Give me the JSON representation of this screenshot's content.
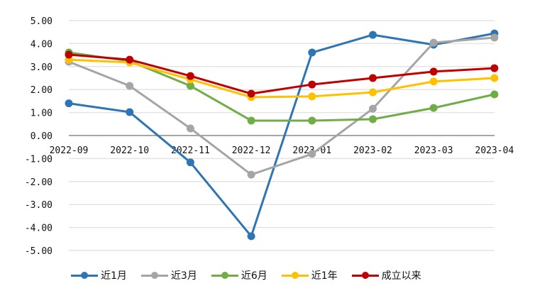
{
  "chart_data": {
    "type": "line",
    "title": "",
    "xlabel": "",
    "ylabel": "",
    "categories": [
      "2022-09",
      "2022-10",
      "2022-11",
      "2022-12",
      "2023-01",
      "2023-02",
      "2023-03",
      "2023-04"
    ],
    "yticks": [
      "5.00",
      "4.00",
      "3.00",
      "2.00",
      "1.00",
      "0.00",
      "-1.00",
      "-2.00",
      "-3.00",
      "-4.00",
      "-5.00"
    ],
    "ylim": [
      -5,
      5
    ],
    "grid": true,
    "legend_position": "bottom",
    "series": [
      {
        "name": "近1月",
        "color": "#2e75b6",
        "values": [
          1.4,
          1.02,
          -1.17,
          -4.38,
          3.61,
          4.38,
          3.95,
          4.44
        ]
      },
      {
        "name": "近3月",
        "color": "#a5a5a5",
        "values": [
          3.21,
          2.16,
          0.31,
          -1.7,
          -0.8,
          1.17,
          4.04,
          4.26
        ]
      },
      {
        "name": "近6月",
        "color": "#70ad47",
        "values": [
          3.61,
          3.24,
          2.16,
          0.65,
          0.65,
          0.71,
          1.2,
          1.79
        ]
      },
      {
        "name": "近1年",
        "color": "#ffc000",
        "values": [
          3.3,
          3.18,
          2.44,
          1.67,
          1.7,
          1.88,
          2.35,
          2.5
        ]
      },
      {
        "name": "成立以来",
        "color": "#c00000",
        "values": [
          3.52,
          3.3,
          2.59,
          1.82,
          2.22,
          2.5,
          2.78,
          2.93
        ]
      }
    ]
  },
  "legend": {
    "items": [
      {
        "label": "近1月",
        "color": "#2e75b6"
      },
      {
        "label": "近3月",
        "color": "#a5a5a5"
      },
      {
        "label": "近6月",
        "color": "#70ad47"
      },
      {
        "label": "近1年",
        "color": "#ffc000"
      },
      {
        "label": "成立以来",
        "color": "#c00000"
      }
    ]
  }
}
